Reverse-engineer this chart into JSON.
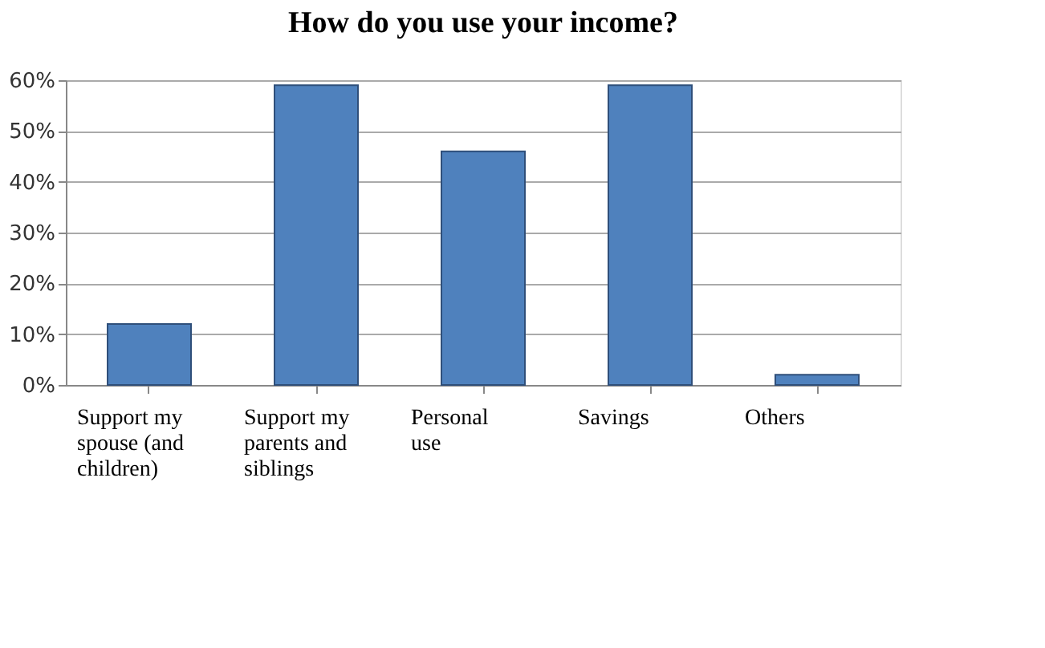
{
  "chart_data": {
    "type": "bar",
    "title": "How do you use your income?",
    "categories": [
      "Support my spouse (and children)",
      "Support my parents and siblings",
      "Personal use",
      "Savings",
      "Others"
    ],
    "values": [
      12,
      59,
      46,
      59,
      2
    ],
    "color": "#4f81bd",
    "ylim": [
      0,
      60
    ],
    "yticks": [
      {
        "value": 0,
        "label": "0%"
      },
      {
        "value": 10,
        "label": "10%"
      },
      {
        "value": 20,
        "label": "20%"
      },
      {
        "value": 30,
        "label": "30%"
      },
      {
        "value": 40,
        "label": "40%"
      },
      {
        "value": 50,
        "label": "50%"
      },
      {
        "value": 60,
        "label": "60%"
      }
    ],
    "grid": "y"
  }
}
